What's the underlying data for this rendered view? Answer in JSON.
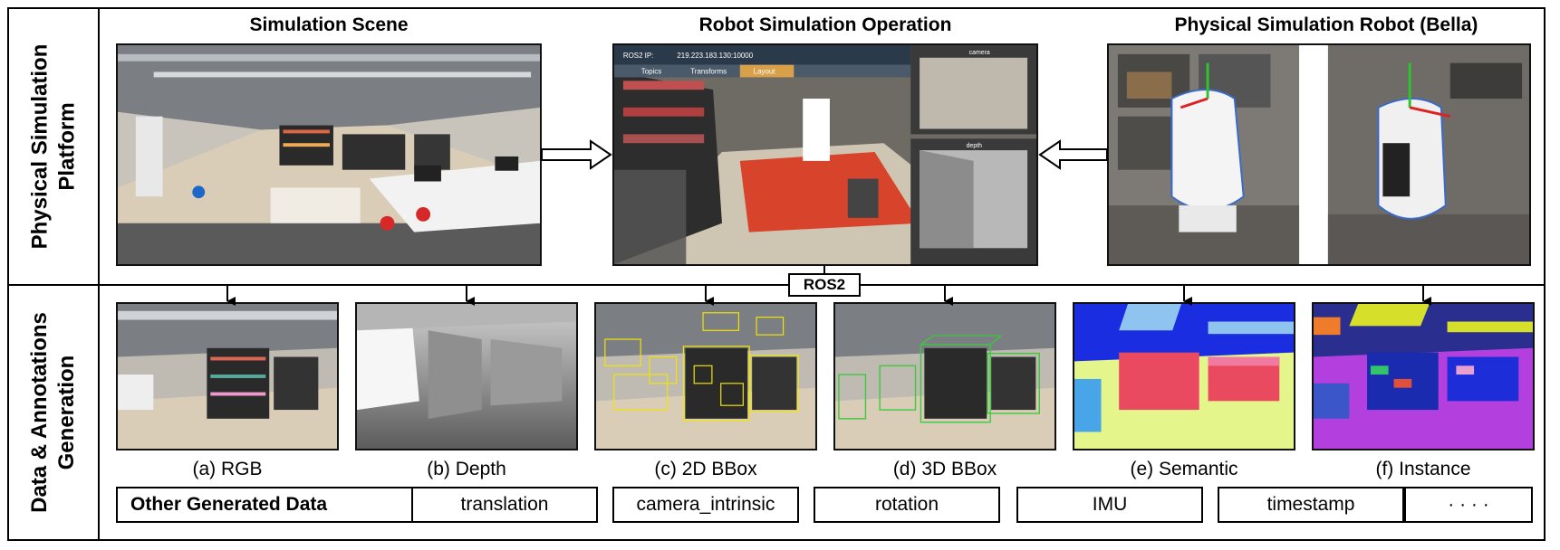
{
  "side_labels": {
    "top": [
      "Physical Simulation",
      "Platform"
    ],
    "bottom": [
      "Data & Annotations",
      "Generation"
    ]
  },
  "titles": {
    "scene": "Simulation Scene",
    "operation": "Robot Simulation Operation",
    "robot": "Physical Simulation Robot (Bella)"
  },
  "ros2_label": "ROS2",
  "operation_ui": {
    "ip_label": "ROS2 IP:",
    "ip_value": "219.223.183.130:10000",
    "tabs": [
      "Topics",
      "Transforms",
      "Layout"
    ],
    "camera_label": "camera",
    "depth_label": "depth"
  },
  "outputs": [
    {
      "id": "rgb",
      "label": "(a) RGB"
    },
    {
      "id": "depth",
      "label": "(b) Depth"
    },
    {
      "id": "bbox2d",
      "label": "(c) 2D BBox"
    },
    {
      "id": "bbox3d",
      "label": "(d) 3D BBox"
    },
    {
      "id": "semantic",
      "label": "(e) Semantic"
    },
    {
      "id": "instance",
      "label": "(f) Instance"
    }
  ],
  "other_data": {
    "header": "Other Generated Data",
    "items": [
      "translation",
      "camera_intrinsic",
      "rotation",
      "IMU",
      "timestamp",
      "· · · ·"
    ]
  },
  "colors": {
    "border": "#000000",
    "floor": "#d9cdb8",
    "shelf": "#2a2a2a",
    "bbox2d": "#f2e600",
    "bbox3d": "#3cc83c",
    "semantic_blue": "#1b2de0",
    "semantic_red": "#ea4a60",
    "semantic_floor": "#e4f58c",
    "instance_purple": "#b23fde",
    "instance_yellow": "#d6df2a"
  }
}
